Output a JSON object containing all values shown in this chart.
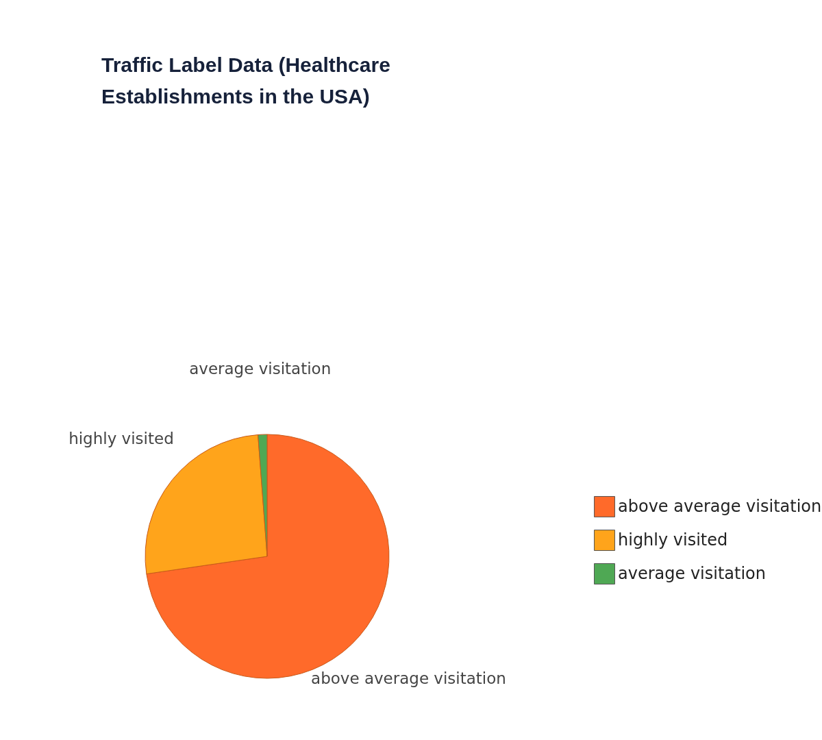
{
  "chart_data": {
    "type": "pie",
    "title": "Traffic Label Data (Healthcare Establishments in the USA)",
    "categories": [
      "above average visitation",
      "highly visited",
      "average visitation"
    ],
    "values": [
      72.7,
      26.1,
      1.2
    ],
    "colors": [
      "#ff6a2a",
      "#ffa41b",
      "#4fa854"
    ],
    "legend": "right"
  }
}
